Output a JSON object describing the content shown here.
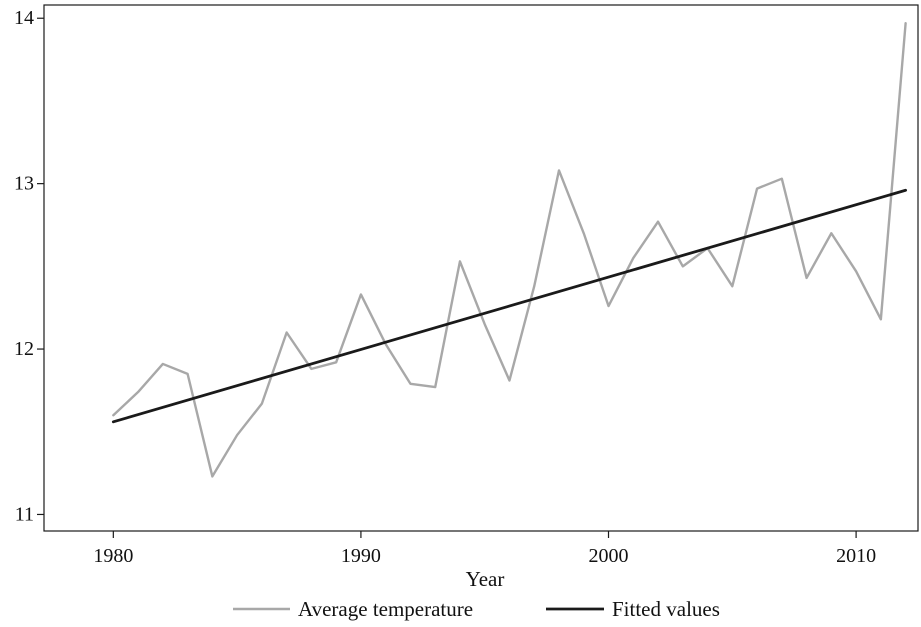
{
  "chart_data": {
    "type": "line",
    "title": "",
    "xlabel": "Year",
    "ylabel": "",
    "xlim": [
      1977.2,
      2012.5
    ],
    "ylim": [
      10.9,
      14.08
    ],
    "x_ticks": [
      1980,
      1990,
      2000,
      2010
    ],
    "y_ticks": [
      11,
      12,
      13,
      14
    ],
    "grid": false,
    "legend_position": "bottom",
    "series": [
      {
        "name": "Average temperature",
        "color": "#a8a8a8",
        "x": [
          1980,
          1981,
          1982,
          1983,
          1984,
          1985,
          1986,
          1987,
          1988,
          1989,
          1990,
          1991,
          1992,
          1993,
          1994,
          1995,
          1996,
          1997,
          1998,
          1999,
          2000,
          2001,
          2002,
          2003,
          2004,
          2005,
          2006,
          2007,
          2008,
          2009,
          2010,
          2011,
          2012
        ],
        "values": [
          11.6,
          11.74,
          11.91,
          11.85,
          11.23,
          11.48,
          11.67,
          12.1,
          11.88,
          11.92,
          12.33,
          12.03,
          11.79,
          11.77,
          12.53,
          12.15,
          11.81,
          12.38,
          13.08,
          12.7,
          12.26,
          12.55,
          12.77,
          12.5,
          12.61,
          12.38,
          12.97,
          13.03,
          12.43,
          12.7,
          12.47,
          12.18,
          13.97
        ]
      },
      {
        "name": "Fitted values",
        "color": "#1a1a1a",
        "x": [
          1980,
          2012
        ],
        "values": [
          11.56,
          12.96
        ]
      }
    ]
  }
}
